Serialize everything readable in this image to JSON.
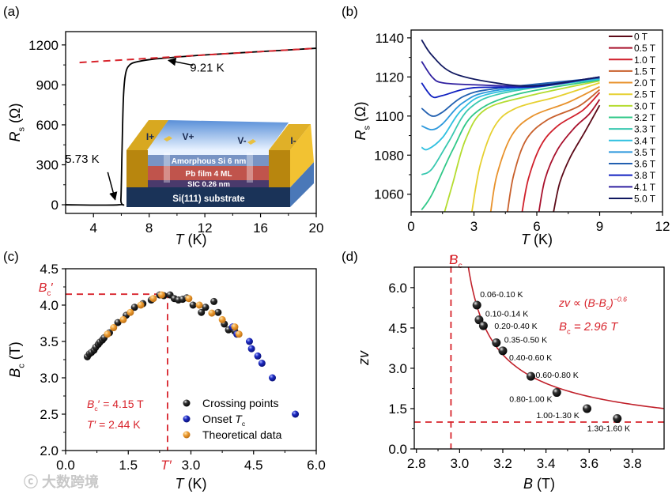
{
  "watermark": "大数跨境",
  "colors": {
    "fit_red": "#c0202a",
    "dashed_red": "#d8242c",
    "crossing": "#111111",
    "onset": "#1a22b0",
    "theory": "#e8962a"
  },
  "chart_data": [
    {
      "panel": "(a)",
      "type": "line",
      "xlabel": "*T* (K)",
      "ylabel": "*R*_s_ (Ω)",
      "xlim": [
        2,
        20
      ],
      "ylim": [
        -65,
        1300
      ],
      "xticks": [
        4,
        8,
        12,
        16,
        20
      ],
      "yticks": [
        0,
        300,
        600,
        900,
        1200
      ],
      "series": [
        {
          "name": "Rs(T)",
          "color": "#000000",
          "points": [
            [
              2,
              0
            ],
            [
              5.85,
              0
            ],
            [
              5.97,
              40
            ],
            [
              6.05,
              400
            ],
            [
              6.15,
              800
            ],
            [
              6.3,
              980
            ],
            [
              6.6,
              1050
            ],
            [
              7.2,
              1075
            ],
            [
              8.2,
              1092
            ],
            [
              9.2,
              1102
            ],
            [
              12,
              1125
            ],
            [
              16,
              1150
            ],
            [
              20,
              1175
            ]
          ]
        },
        {
          "name": "normal-state fit",
          "color": "#d8242c",
          "dashed": true,
          "points": [
            [
              3,
              1068
            ],
            [
              20,
              1175
            ]
          ]
        }
      ],
      "annotations": [
        {
          "text": "9.21 K",
          "at": [
            9.21,
            1102
          ],
          "label_at": [
            11.5,
            1000
          ]
        },
        {
          "text": "5.73 K",
          "at": [
            5.73,
            20
          ],
          "label_at": [
            4.8,
            280
          ]
        }
      ],
      "inset": {
        "labels": {
          "i_plus": "I+",
          "v_plus": "V+",
          "v_minus": "V-",
          "i_minus": "I-",
          "layer1": "Amorphous Si 6 nm",
          "layer2": "Pb film 4 ML",
          "layer3": "SIC  0.26 nm",
          "substrate": "Si(111) substrate"
        }
      }
    },
    {
      "panel": "(b)",
      "type": "line",
      "xlabel": "*T* (K)",
      "ylabel": "*R*_s_ (Ω)",
      "xlim": [
        0,
        12
      ],
      "ylim": [
        1051,
        1144
      ],
      "xticks": [
        0,
        3,
        6,
        9,
        12
      ],
      "yticks": [
        1060,
        1080,
        1100,
        1120,
        1140
      ],
      "legend_position": "right",
      "series": [
        {
          "name": "0 T",
          "color": "#5c0a18",
          "points": [
            [
              6.8,
              1051
            ],
            [
              7.1,
              1066
            ],
            [
              7.6,
              1079
            ],
            [
              8.3,
              1092
            ],
            [
              9,
              1105.5
            ]
          ]
        },
        {
          "name": "0.5 T",
          "color": "#a8102c",
          "points": [
            [
              6.1,
              1051
            ],
            [
              6.4,
              1068
            ],
            [
              7,
              1083
            ],
            [
              7.8,
              1094
            ],
            [
              8.5,
              1101
            ],
            [
              9,
              1108.5
            ]
          ]
        },
        {
          "name": "1.0 T",
          "color": "#d0202c",
          "points": [
            [
              5.3,
              1051
            ],
            [
              5.6,
              1068
            ],
            [
              6.2,
              1085
            ],
            [
              7,
              1095
            ],
            [
              8.2,
              1103
            ],
            [
              9,
              1112
            ]
          ]
        },
        {
          "name": "1.5 T",
          "color": "#c8602c",
          "points": [
            [
              4.6,
              1051
            ],
            [
              4.9,
              1070
            ],
            [
              5.5,
              1088
            ],
            [
              6.5,
              1098
            ],
            [
              8,
              1105
            ],
            [
              9,
              1113.5
            ]
          ]
        },
        {
          "name": "2.0 T",
          "color": "#e8922c",
          "points": [
            [
              3.8,
              1051
            ],
            [
              4.1,
              1070
            ],
            [
              4.8,
              1090
            ],
            [
              5.8,
              1100
            ],
            [
              7.5,
              1107
            ],
            [
              9,
              1115
            ]
          ]
        },
        {
          "name": "2.5 T",
          "color": "#e6d030",
          "points": [
            [
              2.9,
              1051
            ],
            [
              3.3,
              1075
            ],
            [
              4,
              1095
            ],
            [
              5,
              1104
            ],
            [
              7,
              1110
            ],
            [
              9,
              1117
            ]
          ]
        },
        {
          "name": "3.0 T",
          "color": "#b4dc30",
          "points": [
            [
              1.6,
              1051
            ],
            [
              2,
              1066
            ],
            [
              2.6,
              1088
            ],
            [
              3.5,
              1103
            ],
            [
              5.5,
              1110
            ],
            [
              9,
              1118
            ]
          ]
        },
        {
          "name": "3.2 T",
          "color": "#30c888",
          "points": [
            [
              0.5,
              1052
            ],
            [
              1,
              1060
            ],
            [
              2,
              1083
            ],
            [
              3,
              1101
            ],
            [
              5,
              1111
            ],
            [
              9,
              1118.5
            ]
          ]
        },
        {
          "name": "3.3 T",
          "color": "#38c8b0",
          "points": [
            [
              0.5,
              1070
            ],
            [
              1,
              1073
            ],
            [
              1.8,
              1087
            ],
            [
              2.8,
              1104
            ],
            [
              4.5,
              1112
            ],
            [
              9,
              1119
            ]
          ]
        },
        {
          "name": "3.4 T",
          "color": "#30c0e0",
          "points": [
            [
              0.5,
              1084
            ],
            [
              0.8,
              1083
            ],
            [
              1.5,
              1089
            ],
            [
              2.5,
              1104
            ],
            [
              4,
              1112
            ],
            [
              9,
              1119
            ]
          ]
        },
        {
          "name": "3.5 T",
          "color": "#2c98dc",
          "points": [
            [
              0.5,
              1095
            ],
            [
              1,
              1093
            ],
            [
              1.5,
              1096
            ],
            [
              2.5,
              1107
            ],
            [
              4,
              1113
            ],
            [
              9,
              1119.5
            ]
          ]
        },
        {
          "name": "3.6 T",
          "color": "#2260b0",
          "points": [
            [
              0.5,
              1104
            ],
            [
              1,
              1100
            ],
            [
              1.5,
              1102
            ],
            [
              2.5,
              1110
            ],
            [
              4,
              1114
            ],
            [
              9,
              1119.5
            ]
          ]
        },
        {
          "name": "3.8 T",
          "color": "#1020c0",
          "points": [
            [
              0.5,
              1117
            ],
            [
              1,
              1110
            ],
            [
              1.5,
              1110.5
            ],
            [
              3,
              1114.5
            ],
            [
              6,
              1115
            ],
            [
              9,
              1120
            ]
          ]
        },
        {
          "name": "4.1 T",
          "color": "#3020a0",
          "points": [
            [
              0.5,
              1128
            ],
            [
              1,
              1120
            ],
            [
              1.5,
              1117
            ],
            [
              3,
              1116
            ],
            [
              6,
              1115.5
            ],
            [
              9,
              1120
            ]
          ]
        },
        {
          "name": "5.0 T",
          "color": "#101860",
          "points": [
            [
              0.5,
              1139
            ],
            [
              1,
              1131
            ],
            [
              2,
              1122
            ],
            [
              4,
              1117
            ],
            [
              6,
              1115.5
            ],
            [
              9,
              1120
            ]
          ]
        }
      ]
    },
    {
      "panel": "(c)",
      "type": "scatter",
      "xlabel": "*T* (K)",
      "ylabel": "*B*_c_ (T)",
      "xlim": [
        0,
        6
      ],
      "ylim": [
        2,
        4.5
      ],
      "xticks": [
        0.0,
        1.5,
        3.0,
        4.5,
        6.0
      ],
      "xtick_labels": [
        "0.0",
        "1.5",
        "3.0",
        "4.5",
        "6.0"
      ],
      "yticks": [
        2.0,
        2.5,
        3.0,
        3.5,
        4.0,
        4.5
      ],
      "ytick_labels": [
        "2.0",
        "2.5",
        "3.0",
        "3.5",
        "4.0",
        "4.5"
      ],
      "legend_position": "bottom-right",
      "reference": {
        "x": 2.44,
        "y": 4.15,
        "x_label": "*T′*",
        "y_label": "*B*_c_′"
      },
      "annotations": [
        "*B*_c_′ = 4.15 T",
        "*T′* = 2.44 K"
      ],
      "series": [
        {
          "name": "Crossing points",
          "legend": "Crossing points",
          "marker": "black",
          "points": [
            [
              0.52,
              3.29
            ],
            [
              0.57,
              3.33
            ],
            [
              0.62,
              3.35
            ],
            [
              0.68,
              3.38
            ],
            [
              0.72,
              3.42
            ],
            [
              0.78,
              3.46
            ],
            [
              0.82,
              3.49
            ],
            [
              0.88,
              3.52
            ],
            [
              0.92,
              3.55
            ],
            [
              1.05,
              3.62
            ],
            [
              1.25,
              3.76
            ],
            [
              1.45,
              3.86
            ],
            [
              1.65,
              3.97
            ],
            [
              1.85,
              4.02
            ],
            [
              2.05,
              4.07
            ],
            [
              2.25,
              4.14
            ],
            [
              2.35,
              4.13
            ],
            [
              2.5,
              4.14
            ],
            [
              2.6,
              4.09
            ],
            [
              2.7,
              4.07
            ],
            [
              2.8,
              4.08
            ],
            [
              2.9,
              4.1
            ],
            [
              3.05,
              4.0
            ],
            [
              3.25,
              3.9
            ],
            [
              3.35,
              3.97
            ],
            [
              3.55,
              4.05
            ],
            [
              3.65,
              3.9
            ],
            [
              3.8,
              3.74
            ],
            [
              3.9,
              3.66
            ],
            [
              4.05,
              3.64
            ]
          ]
        },
        {
          "name": "Onset Tc",
          "legend": "Onset *T*_c_",
          "marker": "blue",
          "points": [
            [
              4.0,
              3.7
            ],
            [
              4.1,
              3.6
            ],
            [
              4.4,
              3.5
            ],
            [
              4.45,
              3.4
            ],
            [
              4.6,
              3.3
            ],
            [
              4.7,
              3.2
            ],
            [
              4.95,
              3.0
            ],
            [
              5.5,
              2.5
            ]
          ]
        },
        {
          "name": "Theoretical data",
          "legend": "Theoretical data",
          "marker": "orange",
          "points": [
            [
              1.0,
              3.6
            ],
            [
              1.15,
              3.69
            ],
            [
              1.38,
              3.8
            ],
            [
              1.55,
              3.9
            ],
            [
              1.8,
              4.0
            ],
            [
              2.1,
              4.09
            ],
            [
              2.3,
              4.14
            ],
            [
              2.95,
              4.09
            ],
            [
              3.2,
              4.0
            ],
            [
              3.5,
              3.89
            ],
            [
              3.75,
              3.8
            ],
            [
              4.05,
              3.7
            ],
            [
              4.15,
              3.6
            ]
          ]
        }
      ]
    },
    {
      "panel": "(d)",
      "type": "scatter",
      "xlabel": "*B* (T)",
      "ylabel": "*zv*",
      "xlim": [
        2.79,
        3.947
      ],
      "ylim": [
        0,
        6.76
      ],
      "xticks": [
        2.8,
        3.0,
        3.2,
        3.4,
        3.6,
        3.8
      ],
      "xtick_labels": [
        "2.8",
        "3.0",
        "3.2",
        "3.4",
        "3.6",
        "3.8"
      ],
      "yticks": [
        0,
        1.5,
        3.0,
        4.5,
        6.0
      ],
      "ytick_labels": [
        "0.0",
        "1.5",
        "3.0",
        "4.5",
        "6.0"
      ],
      "reference": {
        "x": 2.96,
        "y": 1.0,
        "x_label": "*B*_c_^*^"
      },
      "fit": {
        "Bc_star": 2.96,
        "exponent": -0.6,
        "prefactor": 1.49
      },
      "annotations": [
        "*zv* ∝ (*B*-*B*_c_^*^)^−0.6^",
        "*B*_c_^*^ = 2.96 T"
      ],
      "series": [
        {
          "name": "zv",
          "marker": "black",
          "points": [
            [
              3.08,
              5.35
            ],
            [
              3.09,
              4.8
            ],
            [
              3.11,
              4.58
            ],
            [
              3.17,
              3.95
            ],
            [
              3.2,
              3.65
            ],
            [
              3.33,
              2.7
            ],
            [
              3.45,
              2.1
            ],
            [
              3.59,
              1.5
            ],
            [
              3.73,
              1.13
            ]
          ],
          "labels": [
            "0.06-0.10 K",
            "0.10-0.14 K",
            "0.20-0.40 K",
            "0.35-0.50 K",
            "0.40-0.60 K",
            "0.60-0.80 K",
            "0.80-1.00 K",
            "1.00-1.30 K",
            "1.30-1.60 K"
          ]
        }
      ]
    }
  ]
}
